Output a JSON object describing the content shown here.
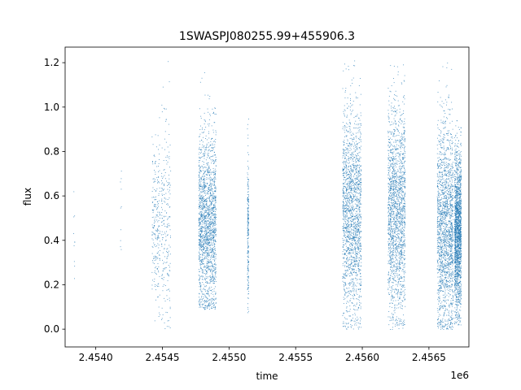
{
  "chart_data": {
    "type": "scatter",
    "title": "1SWASPJ080255.99+455906.3",
    "xlabel": "time",
    "ylabel": "flux",
    "x_offset_label": "1e6",
    "xlim": [
      2453770,
      2456800
    ],
    "ylim": [
      -0.08,
      1.27
    ],
    "xticks": [
      2454000,
      2454500,
      2455000,
      2455500,
      2456000,
      2456500
    ],
    "xtick_labels": [
      "2.4540",
      "2.4545",
      "2.4550",
      "2.4555",
      "2.4560",
      "2.4565"
    ],
    "yticks": [
      0.0,
      0.2,
      0.4,
      0.6,
      0.8,
      1.0,
      1.2
    ],
    "ytick_labels": [
      "0.0",
      "0.2",
      "0.4",
      "0.6",
      "0.8",
      "1.0",
      "1.2"
    ],
    "grid": false,
    "point_color": "#1f77b4",
    "observing_seasons": [
      {
        "x_start": 2453830,
        "x_end": 2453840,
        "y_min": 0.14,
        "y_max": 0.86,
        "y_center": 0.45,
        "density": "sparse"
      },
      {
        "x_start": 2454180,
        "x_end": 2454190,
        "y_min": 0.28,
        "y_max": 0.94,
        "y_center": 0.55,
        "density": "sparse"
      },
      {
        "x_start": 2454420,
        "x_end": 2454480,
        "y_min": 0.01,
        "y_max": 0.96,
        "y_center": 0.48,
        "density": "medium"
      },
      {
        "x_start": 2454490,
        "x_end": 2454560,
        "y_min": 0.0,
        "y_max": 1.21,
        "y_center": 0.47,
        "density": "medium"
      },
      {
        "x_start": 2454770,
        "x_end": 2454900,
        "y_min": 0.09,
        "y_max": 1.18,
        "y_center": 0.47,
        "density": "dense"
      },
      {
        "x_start": 2455135,
        "x_end": 2455145,
        "y_min": 0.06,
        "y_max": 1.01,
        "y_center": 0.47,
        "density": "medium"
      },
      {
        "x_start": 2455850,
        "x_end": 2455990,
        "y_min": 0.0,
        "y_max": 1.21,
        "y_center": 0.52,
        "density": "dense"
      },
      {
        "x_start": 2456190,
        "x_end": 2456320,
        "y_min": 0.0,
        "y_max": 1.22,
        "y_center": 0.53,
        "density": "dense"
      },
      {
        "x_start": 2456560,
        "x_end": 2456680,
        "y_min": 0.0,
        "y_max": 1.2,
        "y_center": 0.45,
        "density": "dense"
      },
      {
        "x_start": 2456690,
        "x_end": 2456740,
        "y_min": 0.02,
        "y_max": 0.95,
        "y_center": 0.44,
        "density": "dense"
      }
    ]
  }
}
